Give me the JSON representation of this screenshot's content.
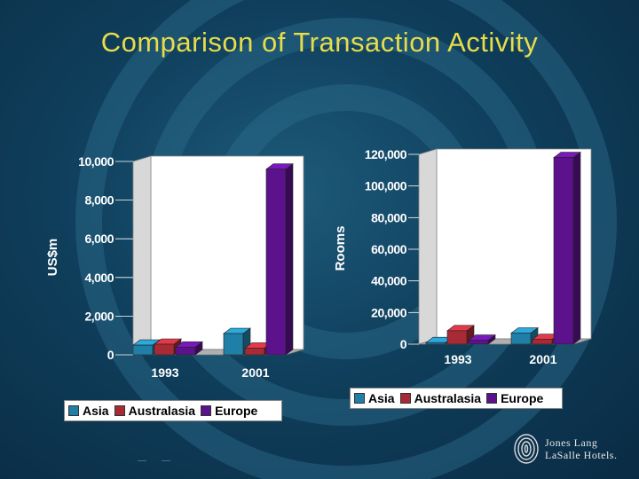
{
  "title": "Comparison of Transaction Activity",
  "logo": {
    "line1": "Jones Lang",
    "line2": "LaSalle Hotels."
  },
  "colors": {
    "asia": "#1f7fa6",
    "australasia": "#a82a35",
    "europe": "#5b128c",
    "title": "#e8dc4a"
  },
  "chart_data": [
    {
      "type": "bar",
      "ylabel": "US$m",
      "xlabel": "",
      "categories": [
        "1993",
        "2001"
      ],
      "ylim": [
        0,
        10000
      ],
      "yticks": [
        "0",
        "2,000",
        "4,000",
        "6,000",
        "8,000",
        "10,000"
      ],
      "grid": false,
      "legend_position": "bottom",
      "series": [
        {
          "name": "Asia",
          "values": [
            500,
            1100
          ]
        },
        {
          "name": "Australasia",
          "values": [
            550,
            350
          ]
        },
        {
          "name": "Europe",
          "values": [
            400,
            9600
          ]
        }
      ]
    },
    {
      "type": "bar",
      "ylabel": "Rooms",
      "xlabel": "",
      "categories": [
        "1993",
        "2001"
      ],
      "ylim": [
        0,
        120000
      ],
      "yticks": [
        "0",
        "20,000",
        "40,000",
        "60,000",
        "80,000",
        "100,000",
        "120,000"
      ],
      "grid": false,
      "legend_position": "bottom",
      "series": [
        {
          "name": "Asia",
          "values": [
            1000,
            7000
          ]
        },
        {
          "name": "Australasia",
          "values": [
            8500,
            3000
          ]
        },
        {
          "name": "Europe",
          "values": [
            2500,
            118000
          ]
        }
      ]
    }
  ]
}
